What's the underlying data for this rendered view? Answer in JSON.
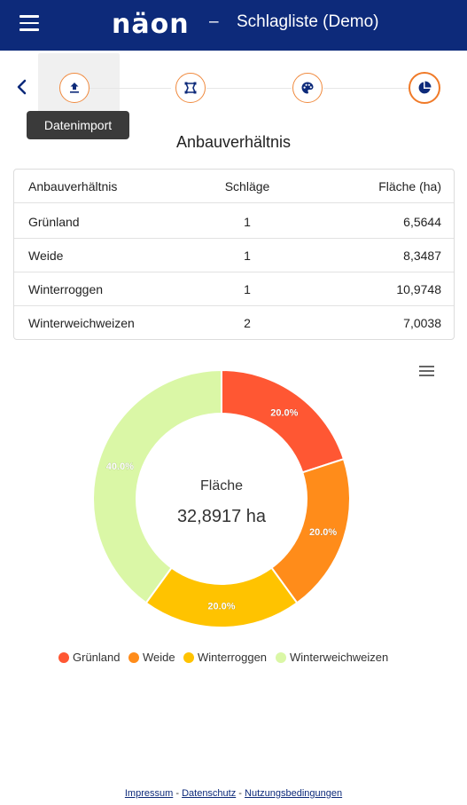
{
  "header": {
    "logo_text": "näon",
    "separator": "–",
    "title": "Schlagliste (Demo)"
  },
  "wizard": {
    "steps": [
      {
        "icon": "upload-icon",
        "state": "done"
      },
      {
        "icon": "polygon-icon",
        "state": "done"
      },
      {
        "icon": "palette-icon",
        "state": "done"
      },
      {
        "icon": "pie-chart-icon",
        "state": "active"
      }
    ],
    "tooltip": "Datenimport"
  },
  "section_title": "Anbauverhältnis",
  "table": {
    "headers": [
      "Anbauverhältnis",
      "Schläge",
      "Fläche (ha)"
    ],
    "rows": [
      [
        "Grünland",
        "1",
        "6,5644"
      ],
      [
        "Weide",
        "1",
        "8,3487"
      ],
      [
        "Winterroggen",
        "1",
        "10,9748"
      ],
      [
        "Winterweichweizen",
        "2",
        "7,0038"
      ]
    ]
  },
  "chart_data": {
    "type": "pie",
    "donut": true,
    "center_label": "Fläche",
    "center_value": "32,8917 ha",
    "slices": [
      {
        "name": "Grünland",
        "value": 20.0,
        "label": "20.0%",
        "color": "#ff5733"
      },
      {
        "name": "Weide",
        "value": 20.0,
        "label": "20.0%",
        "color": "#ff8c1a"
      },
      {
        "name": "Winterroggen",
        "value": 20.0,
        "label": "20.0%",
        "color": "#ffc300"
      },
      {
        "name": "Winterweichweizen",
        "value": 40.0,
        "label": "40.0%",
        "color": "#daf7a6"
      }
    ],
    "legend_position": "bottom"
  },
  "footer": {
    "links": [
      "Impressum",
      "Datenschutz",
      "Nutzungsbedingungen"
    ],
    "separator": "-"
  },
  "colors": {
    "brand": "#0d2a7a",
    "accent": "#f07a28",
    "logo_dots": "#e8334a"
  }
}
